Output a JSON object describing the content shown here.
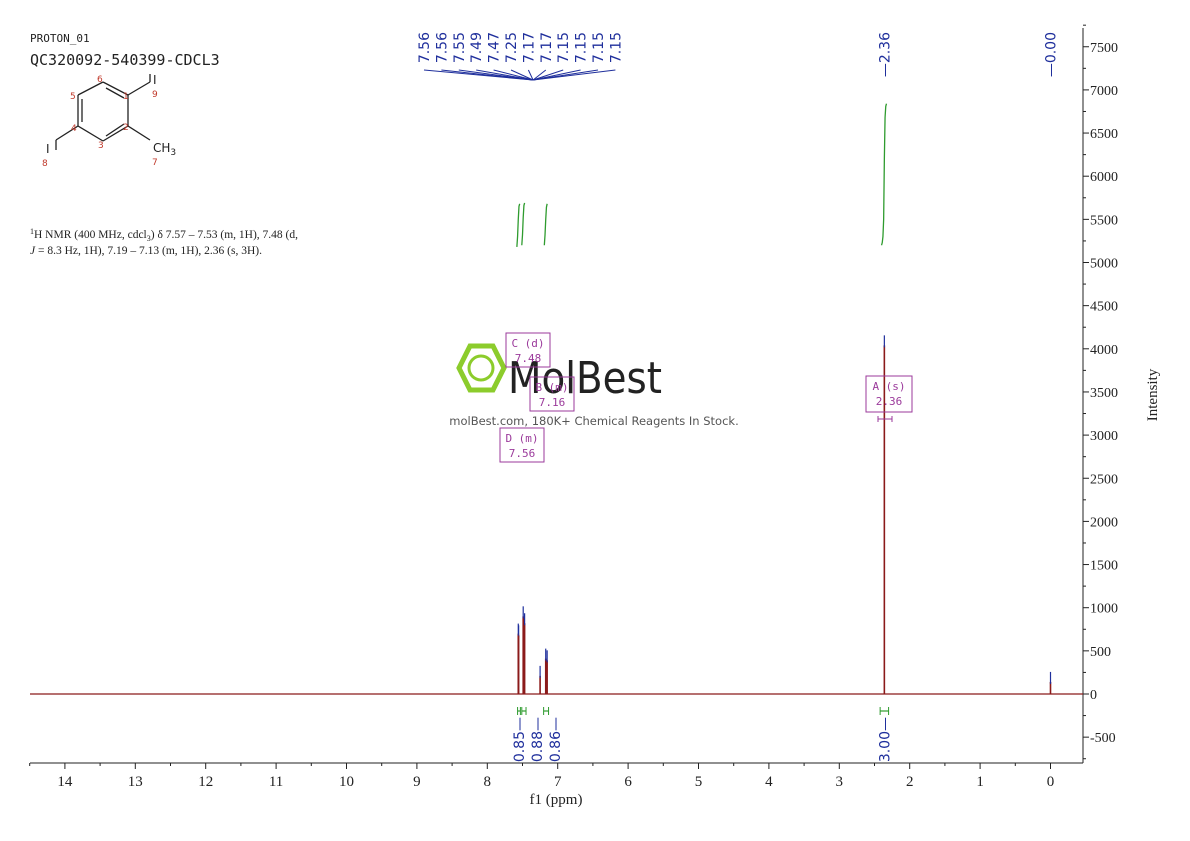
{
  "header": {
    "experiment": "PROTON_01",
    "sample_id": "QC320092-540399-CDCL3"
  },
  "structure": {
    "atom_labels": [
      "1",
      "2",
      "3",
      "4",
      "5",
      "6",
      "7",
      "8",
      "9"
    ],
    "substituent_I_top": "I",
    "substituent_I_left": "I",
    "substituent_methyl": "CH",
    "substituent_methyl_sub": "3"
  },
  "nmr_description": {
    "sup": "1",
    "line1": "H NMR (400 MHz, cdcl",
    "line1_sub": "3",
    "line1_rest": ") δ 7.57 – 7.53 (m, 1H), 7.48 (d,",
    "line2_j": "J",
    "line2_rest": " = 8.3 Hz, 1H), 7.19 – 7.13 (m, 1H), 2.36 (s, 3H)."
  },
  "watermark": {
    "brand": "MolBest",
    "tagline": "molBest.com, 180K+ Chemical Reagents In Stock."
  },
  "colors": {
    "spectrum": "#8b1a1a",
    "peak_labels": "#1f2f9c",
    "integral": "#2e9b2e",
    "multiplet_box": "#9b3a9b",
    "logo_green": "#8ccc2c",
    "text": "#222222"
  },
  "chart_data": {
    "type": "line",
    "xlabel": "f1 (ppm)",
    "ylabel": "Intensity",
    "xlim": [
      14.5,
      -0.45
    ],
    "ylim": [
      -750,
      7850
    ],
    "x_reversed": true,
    "x_ticks": [
      14,
      13,
      12,
      11,
      10,
      9,
      8,
      7,
      6,
      5,
      4,
      3,
      2,
      1,
      0
    ],
    "y_ticks": [
      7500,
      7000,
      6500,
      6000,
      5500,
      5000,
      4500,
      4000,
      3500,
      3000,
      2500,
      2000,
      1500,
      1000,
      500,
      0,
      -500
    ],
    "grid": false,
    "y_axis_side": "right",
    "peaks": [
      {
        "ppm": 7.555,
        "intensity": 680
      },
      {
        "ppm": 7.56,
        "intensity": 700
      },
      {
        "ppm": 7.49,
        "intensity": 900
      },
      {
        "ppm": 7.47,
        "intensity": 820
      },
      {
        "ppm": 7.25,
        "intensity": 210
      },
      {
        "ppm": 7.17,
        "intensity": 410
      },
      {
        "ppm": 7.15,
        "intensity": 390
      },
      {
        "ppm": 2.36,
        "intensity": 4040
      },
      {
        "ppm": 0.0,
        "intensity": 140
      }
    ],
    "peak_labels": {
      "group1": [
        "7.56",
        "7.56",
        "7.55",
        "7.49",
        "7.47",
        "7.25",
        "7.17",
        "7.17",
        "7.15",
        "7.15",
        "7.15",
        "7.15"
      ],
      "group2": [
        "2.36"
      ],
      "group3": [
        "0.00"
      ]
    },
    "integrals": [
      {
        "from": 7.57,
        "to": 7.53,
        "value": "0.85"
      },
      {
        "from": 7.51,
        "to": 7.45,
        "value": "0.88"
      },
      {
        "from": 7.2,
        "to": 7.13,
        "value": "0.86"
      },
      {
        "from": 2.42,
        "to": 2.3,
        "value": "3.00"
      }
    ],
    "integral_curves": [
      {
        "x": [
          7.58,
          7.57,
          7.56,
          7.55,
          7.54
        ],
        "y": [
          5180,
          5300,
          5500,
          5650,
          5680
        ]
      },
      {
        "x": [
          7.51,
          7.5,
          7.49,
          7.48,
          7.47
        ],
        "y": [
          5200,
          5320,
          5520,
          5660,
          5690
        ]
      },
      {
        "x": [
          7.19,
          7.18,
          7.17,
          7.16,
          7.15
        ],
        "y": [
          5200,
          5320,
          5500,
          5640,
          5680
        ]
      },
      {
        "x": [
          2.4,
          2.39,
          2.38,
          2.37,
          2.36,
          2.35,
          2.34,
          2.33
        ],
        "y": [
          5200,
          5230,
          5300,
          5500,
          6200,
          6680,
          6810,
          6840
        ]
      }
    ],
    "multiplets": [
      {
        "label": "C (d)",
        "shift": "7.48"
      },
      {
        "label": "B (m)",
        "shift": "7.16"
      },
      {
        "label": "D (m)",
        "shift": "7.56"
      },
      {
        "label": "A (s)",
        "shift": "2.36"
      }
    ]
  }
}
